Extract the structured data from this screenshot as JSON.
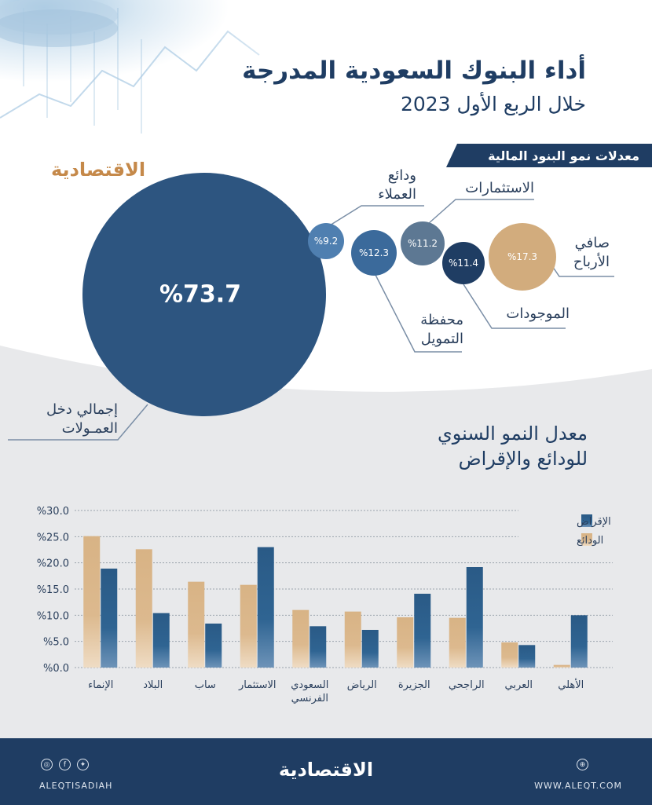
{
  "header": {
    "title": "أداء البنوك السعودية المدرجة",
    "subtitle": "خلال الربع الأول 2023",
    "brand": "الاقتصادية"
  },
  "growth_rates": {
    "section_title": "معدلات نمو البنود المالية",
    "items": [
      {
        "label_l1": "إجمالي دخل",
        "label_l2": "العمـولات",
        "value": "%73.7",
        "color": "#2d5580"
      },
      {
        "label_l1": "ودائع",
        "label_l2": "العملاء",
        "value": "%9.2",
        "color": "#4f7fb0"
      },
      {
        "label_l1": "محفظة",
        "label_l2": "التمويل",
        "value": "%12.3",
        "color": "#3b6a9b"
      },
      {
        "label_l1": "الاستثمارات",
        "label_l2": "",
        "value": "%11.2",
        "color": "#5d7893"
      },
      {
        "label_l1": "الموجودات",
        "label_l2": "",
        "value": "%11.4",
        "color": "#1f3d63"
      },
      {
        "label_l1": "صافي",
        "label_l2": "الأرباح",
        "value": "%17.3",
        "color": "#d2ac7d"
      }
    ]
  },
  "chart_title": {
    "line1": "معدل النمو السنوي",
    "line2": "للودائع والإقراض"
  },
  "chart_data": {
    "type": "bar",
    "categories": [
      "الأهلي",
      "العربي",
      "الراجحي",
      "الجزيرة",
      "الرياض",
      "السعودي الفرنسي",
      "الاستثمار",
      "ساب",
      "البلاد",
      "الإنماء"
    ],
    "series": [
      {
        "name": "الإقراض",
        "color": "#2a5a86",
        "values": [
          10.0,
          4.3,
          19.2,
          14.1,
          7.2,
          7.9,
          23.0,
          8.4,
          10.4,
          18.9
        ]
      },
      {
        "name": "الودائع",
        "color": "#d8b385",
        "values": [
          0.5,
          4.8,
          9.5,
          9.6,
          10.7,
          11.0,
          15.8,
          16.4,
          22.6,
          25.1
        ]
      }
    ],
    "yticks": [
      "%30.0",
      "%25.0",
      "%20.0",
      "%15.0",
      "%10.0",
      "%5.0",
      "%0.0"
    ],
    "ylim": [
      0,
      30
    ],
    "legend": "top-right"
  },
  "footer": {
    "brand": "الاقتصادية",
    "handle": "ALEQTISADIAH",
    "website": "WWW.ALEQT.COM"
  }
}
